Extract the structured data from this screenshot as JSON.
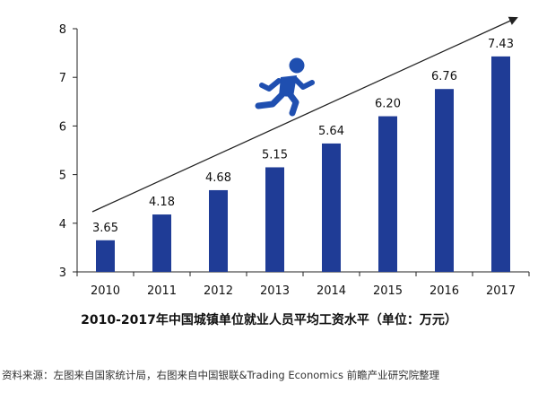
{
  "colors": {
    "bar": "#1F3C96",
    "runner": "#1F4FB0",
    "axis": "#222222",
    "text": "#111111"
  },
  "icons": {
    "runner": "running-person-icon"
  },
  "chart_data": {
    "type": "bar",
    "title": "2010-2017年中国城镇单位就业人员平均工资水平（单位：万元）",
    "categories": [
      "2010",
      "2011",
      "2012",
      "2013",
      "2014",
      "2015",
      "2016",
      "2017"
    ],
    "values": [
      3.65,
      4.18,
      4.68,
      5.15,
      5.64,
      6.2,
      6.76,
      7.43
    ],
    "data_labels": [
      "3.65",
      "4.18",
      "4.68",
      "5.15",
      "5.64",
      "6.20",
      "6.76",
      "7.43"
    ],
    "ylim": [
      3,
      8
    ],
    "yticks": [
      "3",
      "4",
      "5",
      "6",
      "7",
      "8"
    ],
    "xlabel": "",
    "ylabel": "",
    "grid": false,
    "legend": "none",
    "annotation": "upward trend arrow"
  },
  "source_note": "资料来源：左图来自国家统计局，右图来自中国银联&Trading Economics 前瞻产业研究院整理"
}
